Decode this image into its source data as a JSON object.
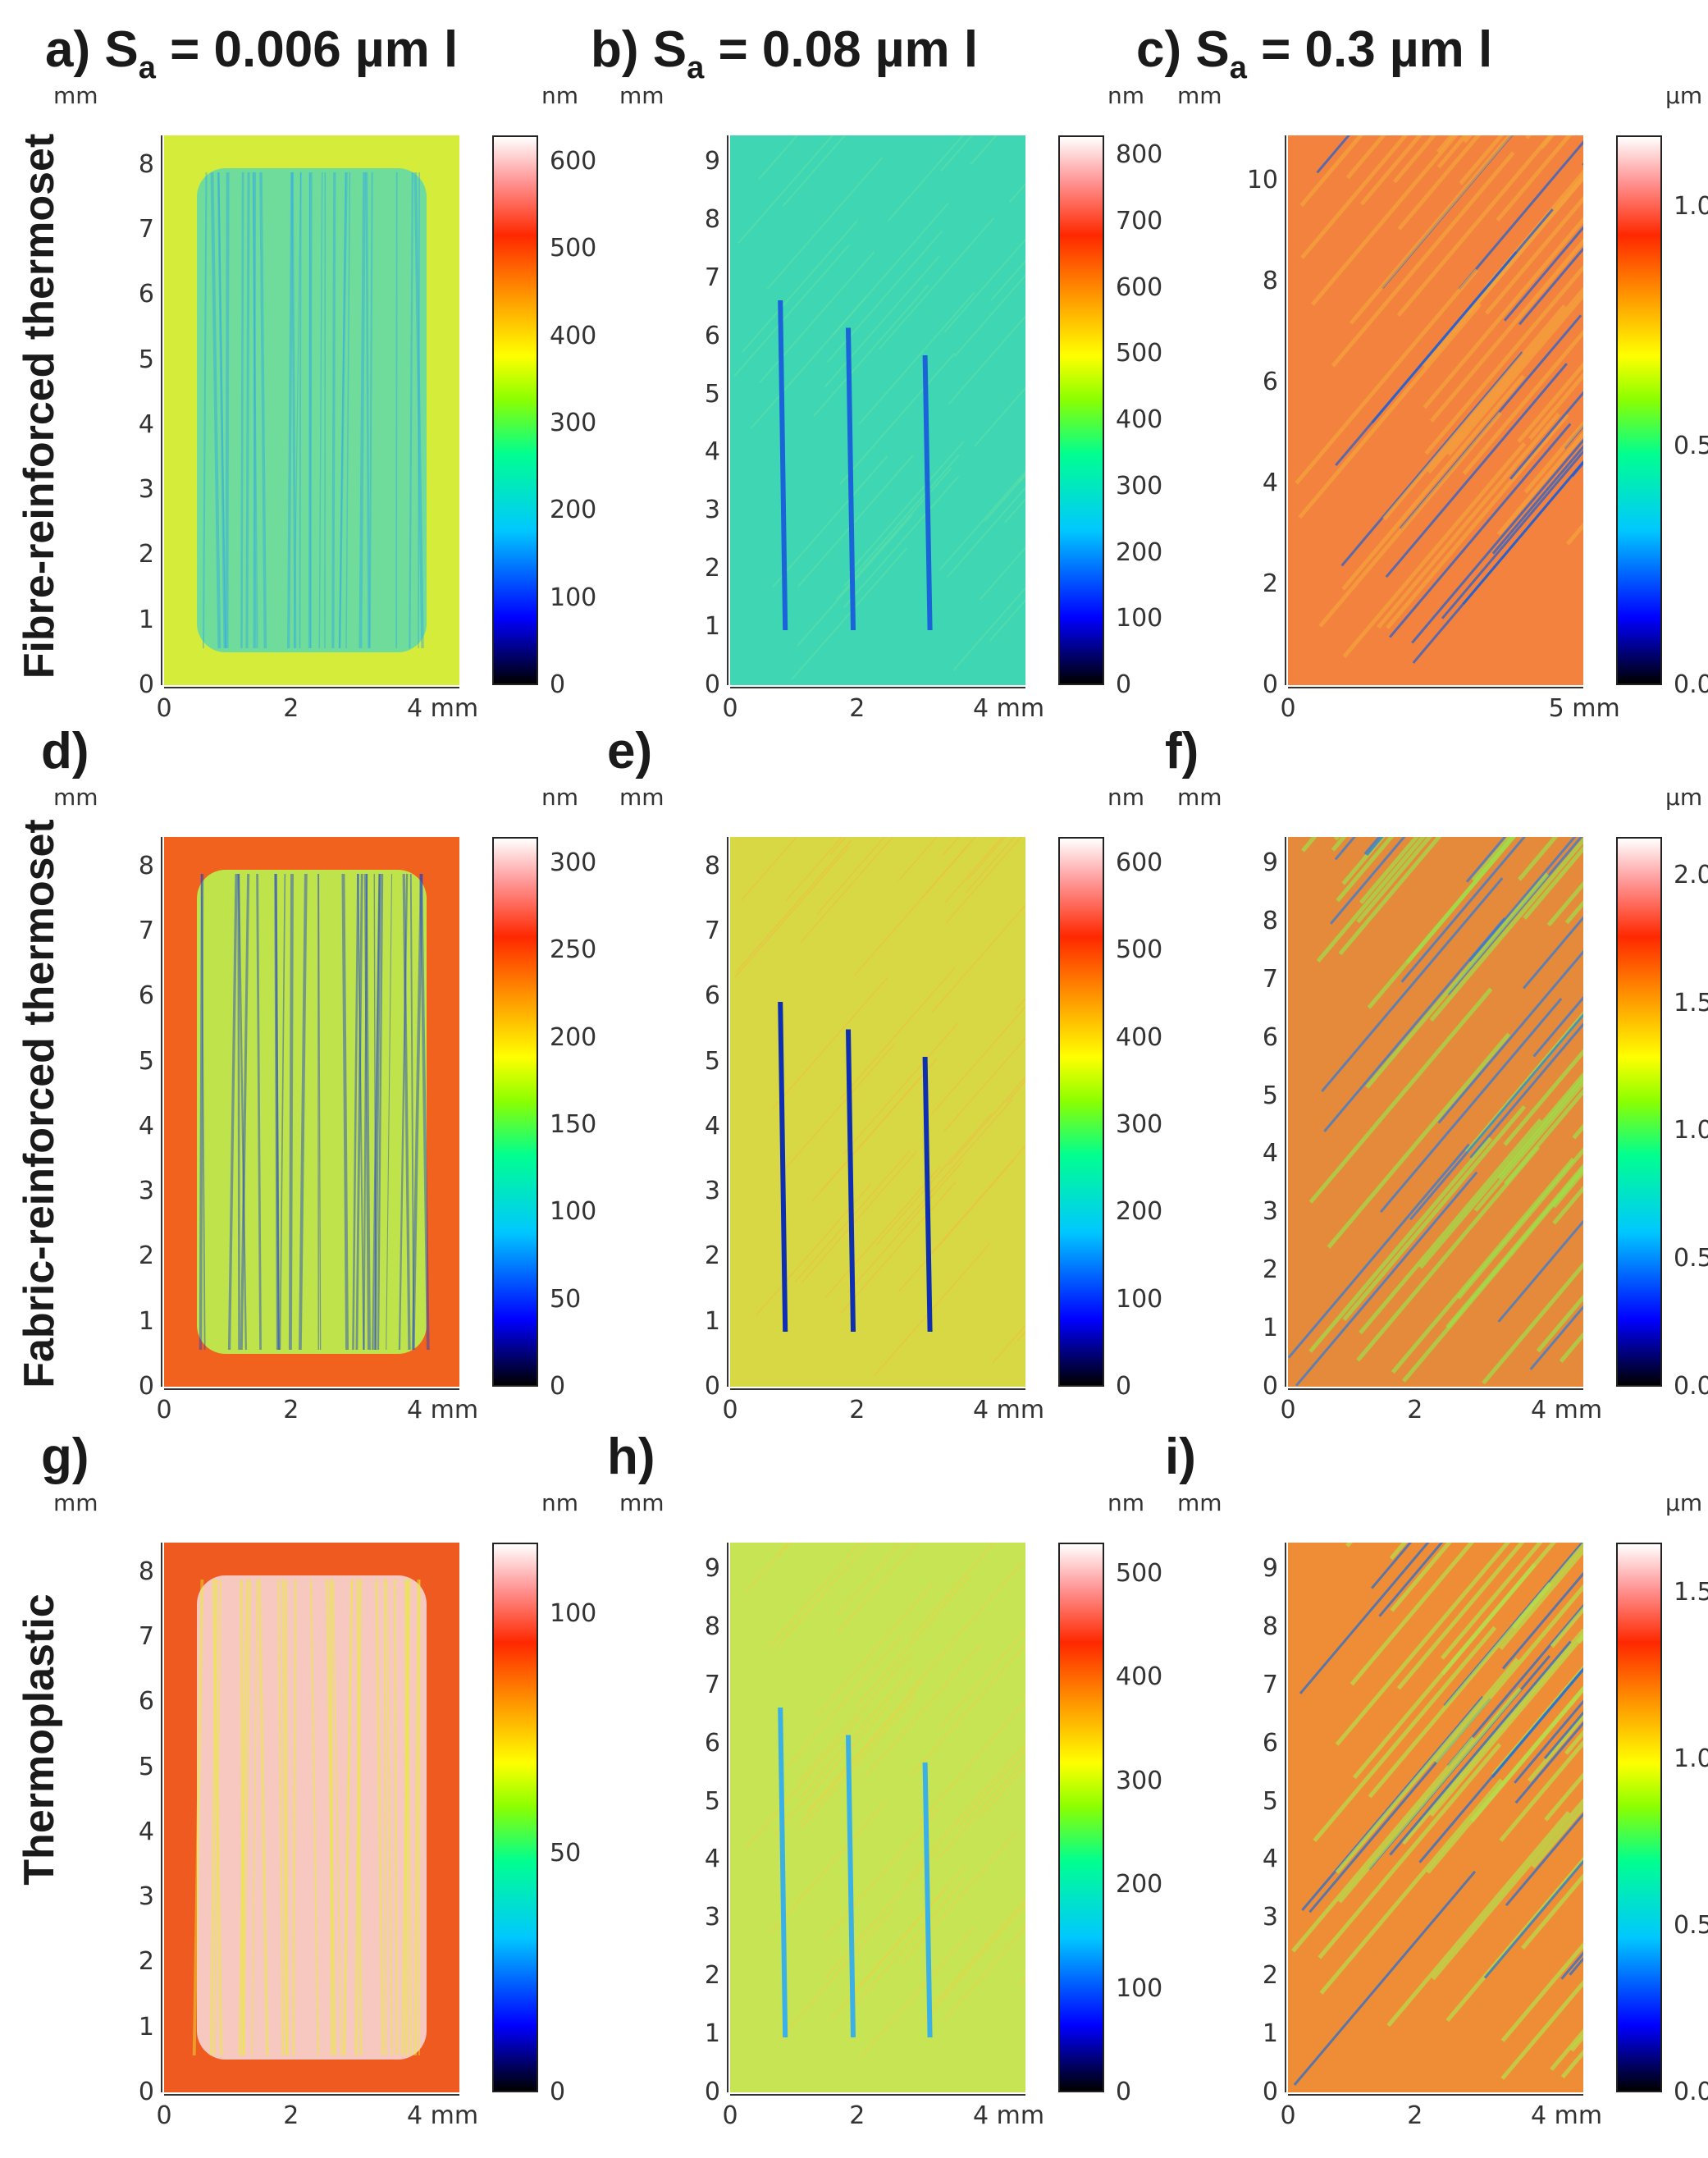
{
  "headings": [
    {
      "prefix": "a) S",
      "sub": "a",
      "text": " = 0.006 µm l"
    },
    {
      "prefix": "b) S",
      "sub": "a",
      "text": " = 0.08 µm l"
    },
    {
      "prefix": "c) S",
      "sub": "a",
      "text": " = 0.3 µm l"
    }
  ],
  "rows": [
    {
      "label": "Fibre-reinforced thermoset"
    },
    {
      "label": "Fabric-reinforced thermoset"
    },
    {
      "label": "Thermoplastic"
    }
  ],
  "panels": [
    {
      "id": "a",
      "label": "a)",
      "unit_axis": "mm",
      "unit_scale": "nm",
      "yticks": [
        "0",
        "1",
        "2",
        "3",
        "4",
        "5",
        "6",
        "7",
        "8"
      ],
      "xticks": [
        "0",
        "2",
        "4 mm"
      ],
      "cticks": [
        "0",
        "100",
        "200",
        "300",
        "400",
        "500",
        "600"
      ],
      "colors": {
        "bg": "#d6ec3a",
        "inner": "#6fdc9c",
        "stripe": "#2fa9e8"
      }
    },
    {
      "id": "b",
      "label": "b)",
      "unit_axis": "mm",
      "unit_scale": "nm",
      "yticks": [
        "0",
        "1",
        "2",
        "3",
        "4",
        "5",
        "6",
        "7",
        "8",
        "9"
      ],
      "xticks": [
        "0",
        "2",
        "4 mm"
      ],
      "cticks": [
        "0",
        "100",
        "200",
        "300",
        "400",
        "500",
        "600",
        "700",
        "800"
      ],
      "colors": {
        "bg": "#3fd6b4",
        "inner": "#5ee0a6",
        "stripe": "#1a63d8"
      }
    },
    {
      "id": "c",
      "label": "c)",
      "unit_axis": "mm",
      "unit_scale": "µm",
      "yticks": [
        "0",
        "2",
        "4",
        "6",
        "8",
        "10"
      ],
      "xticks": [
        "0",
        "5 mm"
      ],
      "cticks": [
        "0.0",
        "0.5",
        "1.0"
      ],
      "colors": {
        "bg": "#f2823e",
        "inner": "#f5a33c",
        "stripe": "#1e5fd6"
      }
    },
    {
      "id": "d",
      "label": "d)",
      "unit_axis": "mm",
      "unit_scale": "nm",
      "yticks": [
        "0",
        "1",
        "2",
        "3",
        "4",
        "5",
        "6",
        "7",
        "8"
      ],
      "xticks": [
        "0",
        "2",
        "4 mm"
      ],
      "cticks": [
        "0",
        "50",
        "100",
        "150",
        "200",
        "250",
        "300"
      ],
      "colors": {
        "bg": "#f0621e",
        "inner": "#bfe34a",
        "stripe": "#1b3fd0"
      }
    },
    {
      "id": "e",
      "label": "e)",
      "unit_axis": "mm",
      "unit_scale": "nm",
      "yticks": [
        "0",
        "1",
        "2",
        "3",
        "4",
        "5",
        "6",
        "7",
        "8"
      ],
      "xticks": [
        "0",
        "2",
        "4 mm"
      ],
      "cticks": [
        "0",
        "100",
        "200",
        "300",
        "400",
        "500",
        "600"
      ],
      "colors": {
        "bg": "#d8d844",
        "inner": "#e9c443",
        "stripe": "#0e2fb0"
      }
    },
    {
      "id": "f",
      "label": "f)",
      "unit_axis": "mm",
      "unit_scale": "µm",
      "yticks": [
        "0",
        "1",
        "2",
        "3",
        "4",
        "5",
        "6",
        "7",
        "8",
        "9"
      ],
      "xticks": [
        "0",
        "2",
        "4 mm"
      ],
      "cticks": [
        "0.0",
        "0.5",
        "1.0",
        "1.5",
        "2.0"
      ],
      "colors": {
        "bg": "#e58a3a",
        "inner": "#9fe04a",
        "stripe": "#2a7ae0"
      }
    },
    {
      "id": "g",
      "label": "g)",
      "unit_axis": "mm",
      "unit_scale": "nm",
      "yticks": [
        "0",
        "1",
        "2",
        "3",
        "4",
        "5",
        "6",
        "7",
        "8"
      ],
      "xticks": [
        "0",
        "2",
        "4 mm"
      ],
      "cticks": [
        "0",
        "50",
        "100"
      ],
      "colors": {
        "bg": "#ee5a20",
        "inner": "#f7c8c0",
        "stripe": "#e8f030"
      }
    },
    {
      "id": "h",
      "label": "h)",
      "unit_axis": "mm",
      "unit_scale": "nm",
      "yticks": [
        "0",
        "1",
        "2",
        "3",
        "4",
        "5",
        "6",
        "7",
        "8",
        "9"
      ],
      "xticks": [
        "0",
        "2",
        "4 mm"
      ],
      "cticks": [
        "0",
        "100",
        "200",
        "300",
        "400",
        "500"
      ],
      "colors": {
        "bg": "#c6e454",
        "inner": "#e8d447",
        "stripe": "#3ab0e6"
      }
    },
    {
      "id": "i",
      "label": "i)",
      "unit_axis": "mm",
      "unit_scale": "µm",
      "yticks": [
        "0",
        "1",
        "2",
        "3",
        "4",
        "5",
        "6",
        "7",
        "8",
        "9"
      ],
      "xticks": [
        "0",
        "2",
        "4 mm"
      ],
      "cticks": [
        "0.0",
        "0.5",
        "1.0",
        "1.5"
      ],
      "colors": {
        "bg": "#ef8d36",
        "inner": "#b6e04c",
        "stripe": "#1f6bd8"
      }
    }
  ]
}
